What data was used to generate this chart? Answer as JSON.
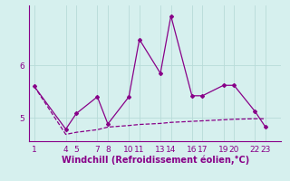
{
  "xlabel": "Windchill (Refroidissement éolien,°C)",
  "background_color": "#d6f0ee",
  "grid_color": "#b8dbd8",
  "line_color": "#880088",
  "xlim": [
    0.5,
    24.5
  ],
  "ylim": [
    4.55,
    7.15
  ],
  "yticks": [
    5,
    6
  ],
  "x_tick_pairs": [
    [
      1,
      "1"
    ],
    [
      4,
      "4"
    ],
    [
      5,
      "5"
    ],
    [
      7,
      "7"
    ],
    [
      8,
      "8"
    ],
    [
      10,
      "10"
    ],
    [
      11,
      "11"
    ],
    [
      13,
      "13"
    ],
    [
      14,
      "14"
    ],
    [
      16,
      "16"
    ],
    [
      17,
      "17"
    ],
    [
      19,
      "19"
    ],
    [
      20,
      "20"
    ],
    [
      22,
      "22"
    ],
    [
      23,
      "23"
    ]
  ],
  "line1_x": [
    1,
    4,
    5,
    7,
    8,
    10,
    11,
    13,
    14,
    16,
    17,
    19,
    20,
    22,
    23
  ],
  "line1_y": [
    5.6,
    4.78,
    5.08,
    5.4,
    4.88,
    5.4,
    6.5,
    5.85,
    6.95,
    5.42,
    5.42,
    5.62,
    5.62,
    5.12,
    4.82
  ],
  "line2_x": [
    1,
    4,
    5,
    7,
    8,
    10,
    11,
    13,
    14,
    16,
    17,
    19,
    20,
    22,
    23
  ],
  "line2_y": [
    5.6,
    4.68,
    4.72,
    4.77,
    4.82,
    4.85,
    4.87,
    4.89,
    4.91,
    4.93,
    4.94,
    4.96,
    4.97,
    4.98,
    4.98
  ],
  "font_color": "#880088",
  "tick_fontsize": 6.5,
  "label_fontsize": 7,
  "marker": "D",
  "markersize": 2.0
}
